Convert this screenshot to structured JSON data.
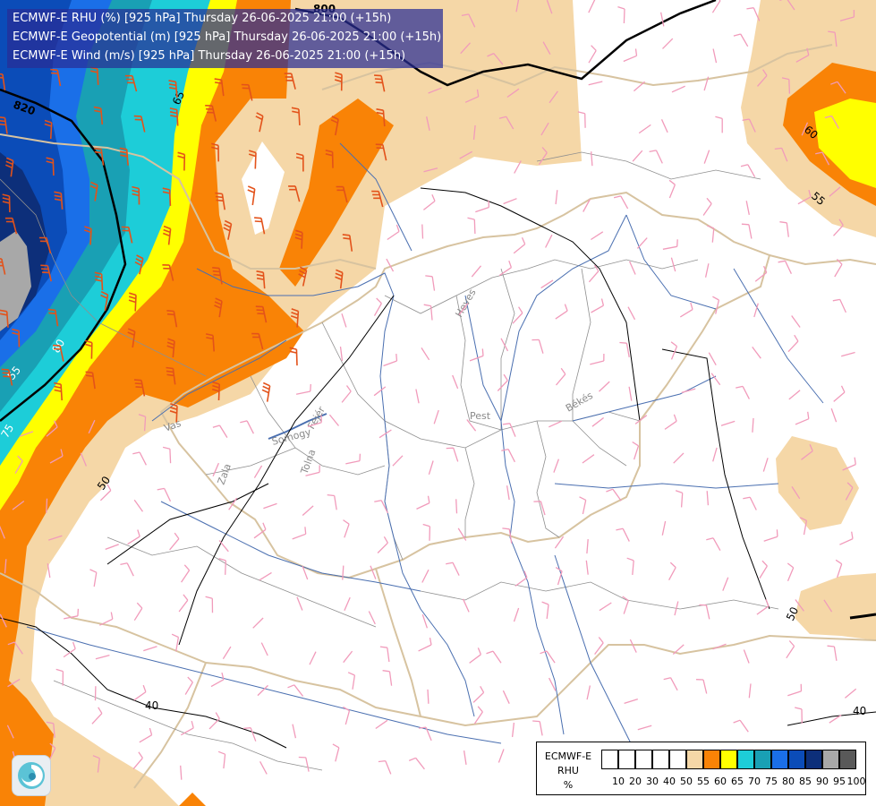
{
  "header": {
    "line1": "ECMWF-E RHU (%) [925 hPa] Thursday 26-06-2025 21:00 (+15h)",
    "line2": "ECMWF-E Geopotential (m) [925 hPa] Thursday 26-06-2025 21:00 (+15h)",
    "line3": "ECMWF-E Wind (m/s) [925 hPa] Thursday 26-06-2025 21:00 (+15h)"
  },
  "legend": {
    "title1": "ECMWF-E",
    "title2": "RHU",
    "unit": "%",
    "ticks": [
      "10",
      "20",
      "30",
      "40",
      "50",
      "55",
      "60",
      "65",
      "70",
      "75",
      "80",
      "85",
      "90",
      "95",
      "100"
    ],
    "colors": [
      "#ffffff",
      "#ffffff",
      "#ffffff",
      "#ffffff",
      "#ffffff",
      "#f5d7a7",
      "#f98306",
      "#ffff00",
      "#1dcdd8",
      "#19a0b4",
      "#1a6fe8",
      "#0b4cb8",
      "#0d2f7a",
      "#a8a8a8",
      "#595959"
    ]
  },
  "fill_colors": {
    "rh_55": "#f5d7a7",
    "rh_60": "#f98306",
    "rh_65": "#ffff00",
    "rh_70": "#1dcdd8",
    "rh_75": "#19a0b4",
    "rh_80": "#1a6fe8",
    "rh_85": "#0b4cb8",
    "rh_90": "#0d2f7a",
    "rh_95": "#a8a8a8",
    "border": "#d7c3a0",
    "river": "#4a6fb0",
    "wind_weak": "#f19bbb",
    "wind_strong": "#e3521a"
  },
  "contour_labels": {
    "geo_800": "800",
    "geo_820": "820",
    "rh_65": "65",
    "rh_80": "80",
    "rh_75": "75",
    "rh_55_left": "55",
    "rh_50_left": "50",
    "rh_40_left": "40",
    "rh_60_right": "60",
    "rh_55_right": "55",
    "rh_50_right": "50",
    "rh_40_right": "40"
  },
  "places": {
    "heves": "Heves",
    "pest": "Pest",
    "bekes": "Békés",
    "vas": "Vas",
    "zala": "Zala",
    "somogy": "Somogy",
    "tolna": "Tolna",
    "fejer": "Fejér"
  },
  "logo": {
    "name": "weather-logo-icon"
  }
}
